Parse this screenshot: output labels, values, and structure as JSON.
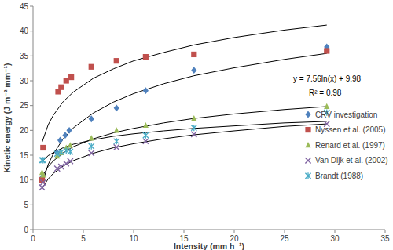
{
  "chart_data": {
    "type": "scatter",
    "x_label": "Intensity (mm h⁻¹)",
    "y_label": "Kinetic energy (J m⁻² mm⁻¹)",
    "annotations": [
      "y = 7.56ln(x) + 9.98",
      "R² = 0.98"
    ],
    "xlim": [
      0,
      35
    ],
    "xticks": [
      0,
      5,
      10,
      15,
      20,
      25,
      30,
      35
    ],
    "ylim": [
      0,
      45
    ],
    "yticks": [
      0,
      5,
      10,
      15,
      20,
      25,
      30,
      35,
      40,
      45
    ],
    "grid": false,
    "legend": "right",
    "series": [
      {
        "name": "CRV investigation",
        "type": "scatter",
        "marker": "diamond",
        "color": "#4f81bd",
        "x": [
          0.9,
          2.4,
          2.7,
          3.2,
          3.6,
          5.8,
          8.3,
          11.2,
          16,
          29.2
        ],
        "values": [
          10.5,
          15.5,
          18,
          19,
          20,
          22.3,
          24.5,
          28,
          32.1,
          36.8
        ]
      },
      {
        "name": "Nyssen et al. (2005)",
        "type": "scatter",
        "marker": "square",
        "color": "#c0504d",
        "x": [
          0.9,
          1,
          2.5,
          2.8,
          3.3,
          3.8,
          5.8,
          8.3,
          11.2,
          16,
          29.2
        ],
        "values": [
          10,
          16.5,
          27.8,
          28.7,
          30,
          30.7,
          32.8,
          34,
          34.8,
          35.3,
          36
        ]
      },
      {
        "name": "Renard et al. (1997)",
        "type": "scatter",
        "marker": "triangle",
        "color": "#9bbb59",
        "x": [
          0.9,
          1,
          2.4,
          2.8,
          3.3,
          3.7,
          5.8,
          8.3,
          11.2,
          16,
          29.2
        ],
        "values": [
          11.5,
          11,
          14.8,
          15.5,
          16.5,
          17,
          18.4,
          20,
          21,
          22.4,
          24.8
        ]
      },
      {
        "name": "Van Dijk et al. (2002)",
        "type": "scatter",
        "marker": "x",
        "color": "#8064a2",
        "x": [
          0.9,
          1,
          2.4,
          2.8,
          3.3,
          3.7,
          5.8,
          8.3,
          11.2,
          16,
          29.2
        ],
        "values": [
          8.5,
          9.5,
          12.3,
          12.7,
          13.3,
          13.8,
          15.4,
          16.6,
          17.8,
          19.2,
          21.3
        ]
      },
      {
        "name": "Brandt (1988)",
        "type": "scatter",
        "marker": "asterisk",
        "color": "#4bacc6",
        "x": [
          0.9,
          1,
          2.4,
          2.8,
          3.3,
          3.7,
          5.8,
          8.3,
          11.2,
          16,
          29.2
        ],
        "values": [
          14,
          14,
          15.3,
          15.6,
          15.9,
          15.7,
          16.8,
          17.8,
          19,
          20.5,
          23.6
        ]
      },
      {
        "type": "line",
        "color": "#000000",
        "line_style": "solid",
        "x": [
          0.9,
          1.5,
          2,
          3,
          4,
          6,
          8,
          10,
          13,
          16,
          20,
          25,
          29.2
        ],
        "values": [
          9.2,
          13.1,
          15.2,
          18.3,
          20.5,
          23.5,
          25.7,
          27.4,
          29.4,
          31,
          32.6,
          34.3,
          35.5
        ]
      },
      {
        "type": "line",
        "color": "#000000",
        "line_style": "solid",
        "x": [
          0.9,
          1.5,
          2,
          3,
          4,
          6,
          8,
          10,
          13,
          16,
          20,
          25,
          29.2
        ],
        "values": [
          17.6,
          21.1,
          23,
          25.8,
          27.7,
          30.5,
          32.4,
          34,
          35.7,
          37.2,
          38.7,
          40.2,
          41.2
        ]
      },
      {
        "type": "line",
        "color": "#000000",
        "line_style": "solid",
        "x": [
          0.9,
          1.5,
          2,
          3,
          4,
          6,
          8,
          10,
          13,
          16,
          20,
          25,
          29.2
        ],
        "values": [
          10.6,
          12.7,
          13.8,
          15.5,
          16.7,
          18.3,
          19.5,
          20.4,
          21.5,
          22.4,
          23.3,
          24.2,
          24.8
        ]
      },
      {
        "type": "line",
        "color": "#000000",
        "line_style": "solid",
        "x": [
          0.9,
          1.5,
          2,
          3,
          4,
          6,
          8,
          10,
          13,
          16,
          20,
          25,
          29.2
        ],
        "values": [
          8.3,
          10.2,
          11.3,
          12.8,
          13.9,
          15.4,
          16.5,
          17.3,
          18.3,
          19.1,
          19.9,
          20.8,
          21.3
        ]
      },
      {
        "type": "line",
        "color": "#000000",
        "line_style": "solid",
        "x": [
          0.9,
          1.5,
          2,
          3,
          4,
          6,
          8,
          10,
          13,
          16,
          20,
          25,
          29.2
        ],
        "values": [
          13.7,
          14.9,
          15.5,
          16.5,
          17.2,
          18.1,
          18.8,
          19.3,
          19.9,
          20.4,
          20.9,
          21.5,
          21.8
        ]
      }
    ]
  }
}
